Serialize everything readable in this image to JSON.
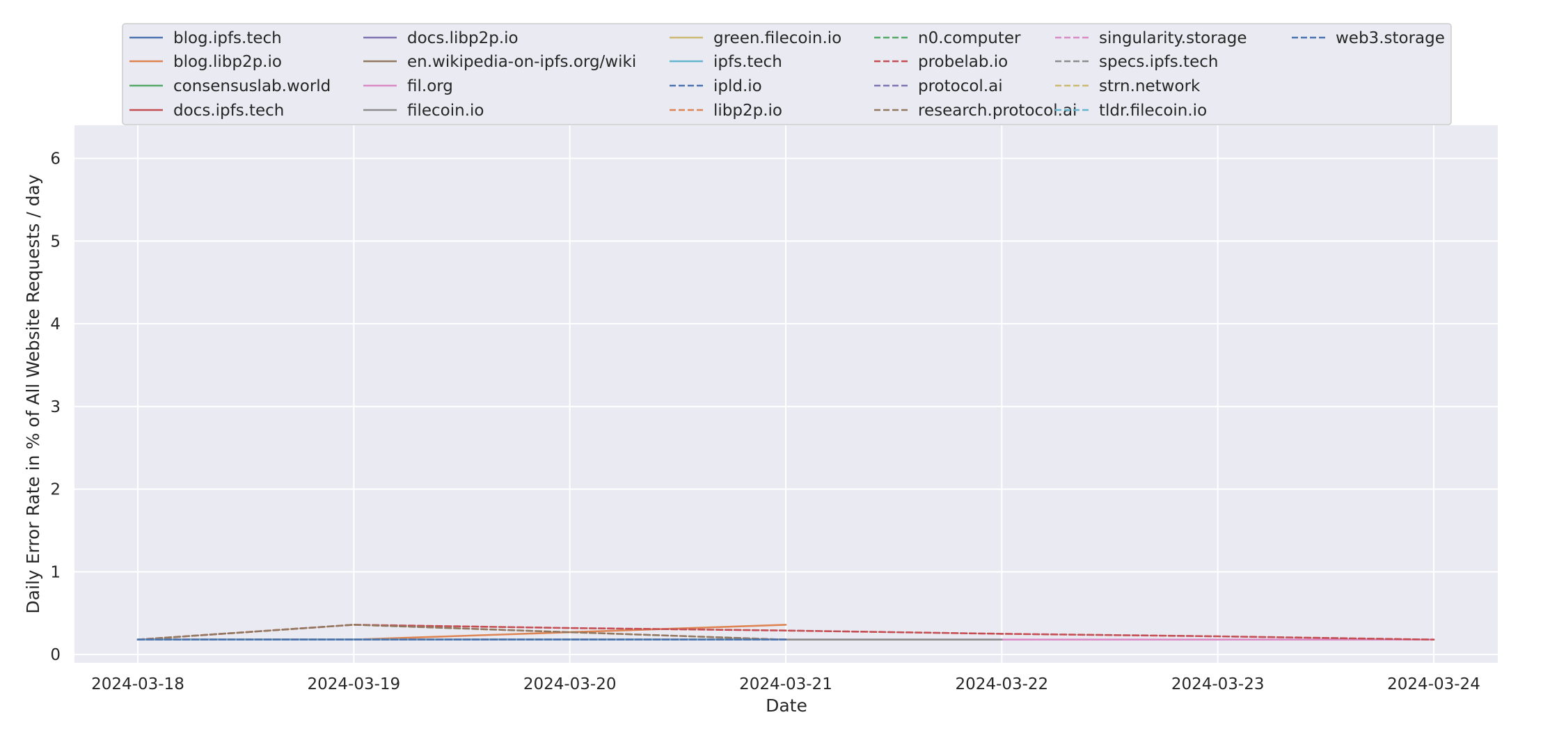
{
  "chart_data": {
    "type": "line",
    "title": "",
    "xlabel": "Date",
    "ylabel": "Daily Error Rate in % of All Website Requests / day",
    "x": [
      "2024-03-18",
      "2024-03-19",
      "2024-03-20",
      "2024-03-21",
      "2024-03-22",
      "2024-03-23",
      "2024-03-24"
    ],
    "ylim": [
      -0.1,
      6.4
    ],
    "yticks": [
      0,
      1,
      2,
      3,
      4,
      5,
      6
    ],
    "grid": true,
    "legend_position": "top-center",
    "series": [
      {
        "name": "blog.ipfs.tech",
        "color": "#4c72b0",
        "dash": false,
        "values": [
          0.18,
          0.18,
          0.18,
          0.18,
          null,
          null,
          null
        ]
      },
      {
        "name": "blog.libp2p.io",
        "color": "#dd8452",
        "dash": false,
        "values": [
          0.18,
          0.18,
          0.27,
          0.36,
          null,
          null,
          null
        ]
      },
      {
        "name": "consensuslab.world",
        "color": "#55a868",
        "dash": false,
        "values": [
          0.18,
          0.18,
          0.18,
          0.18,
          null,
          null,
          null
        ]
      },
      {
        "name": "docs.ipfs.tech",
        "color": "#c44e52",
        "dash": false,
        "values": [
          0.18,
          0.18,
          0.18,
          0.18,
          null,
          null,
          null
        ]
      },
      {
        "name": "docs.libp2p.io",
        "color": "#8172b3",
        "dash": false,
        "values": [
          0.18,
          0.18,
          0.18,
          0.18,
          null,
          null,
          null
        ]
      },
      {
        "name": "en.wikipedia-on-ipfs.org/wiki",
        "color": "#937860",
        "dash": false,
        "values": [
          0.18,
          0.18,
          0.18,
          0.18,
          null,
          null,
          null
        ]
      },
      {
        "name": "fil.org",
        "color": "#da8bc3",
        "dash": false,
        "values": [
          0.18,
          0.18,
          0.18,
          0.18,
          0.18,
          0.18,
          0.18
        ]
      },
      {
        "name": "filecoin.io",
        "color": "#8c8c8c",
        "dash": false,
        "values": [
          0.18,
          0.18,
          0.18,
          0.18,
          0.18,
          null,
          null
        ]
      },
      {
        "name": "green.filecoin.io",
        "color": "#ccb974",
        "dash": false,
        "values": [
          0.18,
          0.18,
          0.18,
          0.18,
          null,
          null,
          null
        ]
      },
      {
        "name": "ipfs.tech",
        "color": "#64b5cd",
        "dash": false,
        "values": [
          0.18,
          0.18,
          0.18,
          0.18,
          null,
          null,
          null
        ]
      },
      {
        "name": "ipld.io",
        "color": "#4c72b0",
        "dash": true,
        "values": [
          0.18,
          0.18,
          0.18,
          0.18,
          null,
          null,
          null
        ]
      },
      {
        "name": "libp2p.io",
        "color": "#dd8452",
        "dash": true,
        "values": [
          0.18,
          0.18,
          0.18,
          0.18,
          null,
          null,
          null
        ]
      },
      {
        "name": "n0.computer",
        "color": "#55a868",
        "dash": true,
        "values": [
          0.18,
          0.18,
          0.18,
          0.18,
          null,
          null,
          null
        ]
      },
      {
        "name": "probelab.io",
        "color": "#c44e52",
        "dash": true,
        "values": [
          0.18,
          0.36,
          0.32,
          0.29,
          0.25,
          0.22,
          0.18
        ]
      },
      {
        "name": "protocol.ai",
        "color": "#8172b3",
        "dash": true,
        "values": [
          0.18,
          0.18,
          0.18,
          0.18,
          null,
          null,
          null
        ]
      },
      {
        "name": "research.protocol.ai",
        "color": "#937860",
        "dash": true,
        "values": [
          0.18,
          0.36,
          0.27,
          0.18,
          null,
          null,
          null
        ]
      },
      {
        "name": "singularity.storage",
        "color": "#da8bc3",
        "dash": true,
        "values": [
          0.18,
          0.18,
          0.18,
          0.18,
          null,
          null,
          null
        ]
      },
      {
        "name": "specs.ipfs.tech",
        "color": "#8c8c8c",
        "dash": true,
        "values": [
          0.18,
          0.18,
          0.18,
          0.18,
          null,
          null,
          null
        ]
      },
      {
        "name": "strn.network",
        "color": "#ccb974",
        "dash": true,
        "values": [
          0.18,
          0.18,
          0.18,
          0.18,
          null,
          null,
          null
        ]
      },
      {
        "name": "tldr.filecoin.io",
        "color": "#64b5cd",
        "dash": true,
        "values": [
          0.18,
          0.18,
          0.18,
          0.18,
          null,
          null,
          null
        ]
      },
      {
        "name": "web3.storage",
        "color": "#4c72b0",
        "dash": true,
        "values": [
          0.18,
          0.18,
          0.18,
          0.18,
          null,
          null,
          null
        ]
      }
    ]
  }
}
